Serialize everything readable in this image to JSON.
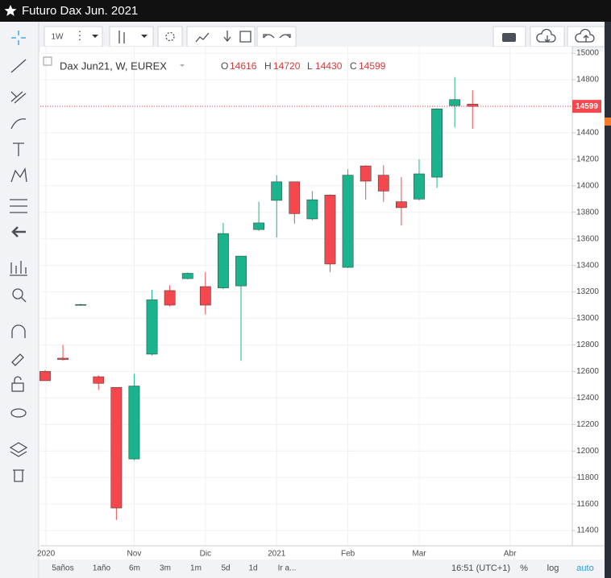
{
  "window": {
    "title": "Futuro Dax Jun. 2021"
  },
  "toolbar": {
    "interval": "1W"
  },
  "legend": {
    "symbol": "Dax Jun21, W, EUREX",
    "o": "O",
    "h": "H",
    "l": "L",
    "c": "C"
  },
  "bottom_bar": {
    "ranges": [
      "5años",
      "1año",
      "6m",
      "3m",
      "1m",
      "5d",
      "1d",
      "Ir a..."
    ],
    "time": "16:51 (UTC+1)",
    "percent": "%",
    "log": "log",
    "auto": "auto"
  },
  "chart_data": {
    "type": "candlestick",
    "categories": [
      null,
      null,
      null,
      null,
      null,
      null,
      null,
      null,
      null,
      null,
      null,
      null,
      null,
      null,
      null,
      null,
      null,
      null,
      null,
      null,
      null,
      null,
      null,
      null,
      null
    ],
    "open": [
      12600,
      12700,
      13100,
      12560,
      12480,
      11940,
      12730,
      13210,
      13300,
      13240,
      13230,
      13245,
      13670,
      13890,
      14030,
      13750,
      13930,
      13385,
      14150,
      14080,
      13880,
      13900,
      14065,
      14605,
      14616
    ],
    "high": [
      12610,
      12800,
      13110,
      12570,
      12480,
      12580,
      13215,
      13250,
      13345,
      13350,
      13720,
      13470,
      13880,
      14080,
      14030,
      13960,
      13935,
      14125,
      14155,
      14155,
      14065,
      14200,
      14585,
      14820,
      14720
    ],
    "low": [
      12530,
      12680,
      13095,
      12460,
      11480,
      11930,
      12720,
      13090,
      13295,
      13030,
      13220,
      12680,
      13660,
      13610,
      13715,
      13740,
      13350,
      13380,
      13895,
      13880,
      13700,
      13890,
      13985,
      14440,
      14430
    ],
    "close": [
      12530,
      12690,
      13105,
      12510,
      11570,
      12490,
      13140,
      13100,
      13340,
      13100,
      13640,
      13470,
      13720,
      14030,
      13790,
      13895,
      13410,
      14080,
      14035,
      13960,
      13835,
      14090,
      14580,
      14650,
      14599
    ],
    "up_color": "#1bb38c",
    "down_color": "#f5474e",
    "xlim": [
      -0.27,
      29.6
    ],
    "xticks": [
      {
        "value": 0.05,
        "label": "2020"
      },
      {
        "value": 5,
        "label": "Nov"
      },
      {
        "value": 9,
        "label": "Dic"
      },
      {
        "value": 13,
        "label": "2021"
      },
      {
        "value": 17,
        "label": "Feb"
      },
      {
        "value": 21,
        "label": "Mar"
      },
      {
        "value": 26.1,
        "label": "Abr"
      }
    ],
    "ylim": [
      11285,
      15049
    ],
    "yticks": [
      11400,
      11600,
      11800,
      12000,
      12200,
      12400,
      12600,
      12800,
      13000,
      13200,
      13400,
      13600,
      13800,
      14000,
      14200,
      14400,
      14600,
      14800,
      15000
    ],
    "grid": true
  }
}
